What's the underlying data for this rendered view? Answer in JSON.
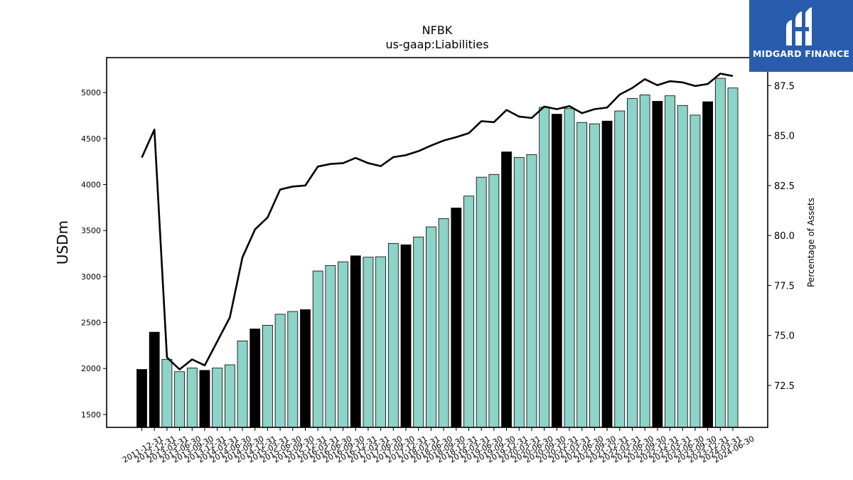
{
  "chart_data": {
    "type": "bar",
    "title": "NFBK",
    "subtitle": "us-gaap:Liabilities",
    "ylabel": "USDm",
    "y2label": "Percentage of Assets",
    "ylim": [
      1360,
      5380
    ],
    "y2lim": [
      70.4,
      88.9
    ],
    "yticks": [
      1500,
      2000,
      2500,
      3000,
      3500,
      4000,
      4500,
      5000
    ],
    "y2ticks": [
      "72.5",
      "75.0",
      "77.5",
      "80.0",
      "82.5",
      "85.0",
      "87.5"
    ],
    "bar_colors": {
      "q4": "#000000",
      "other": "#8dd3c7"
    },
    "line_color": "#000000",
    "categories": [
      "2011-12-31",
      "2012-12-31",
      "2013-03-31",
      "2013-06-30",
      "2013-09-30",
      "2013-12-31",
      "2014-03-31",
      "2014-06-30",
      "2014-09-30",
      "2014-12-31",
      "2015-03-31",
      "2015-06-30",
      "2015-09-30",
      "2015-12-31",
      "2016-03-31",
      "2016-06-30",
      "2016-09-30",
      "2016-12-31",
      "2017-03-31",
      "2017-06-30",
      "2017-09-30",
      "2017-12-31",
      "2018-03-31",
      "2018-06-30",
      "2018-09-30",
      "2018-12-31",
      "2019-03-31",
      "2019-06-30",
      "2019-09-30",
      "2019-12-31",
      "2020-03-31",
      "2020-06-30",
      "2020-09-30",
      "2020-12-31",
      "2021-03-31",
      "2021-06-30",
      "2021-09-30",
      "2021-12-31",
      "2022-03-31",
      "2022-06-30",
      "2022-09-30",
      "2022-12-31",
      "2023-03-31",
      "2023-06-30",
      "2023-09-30",
      "2023-12-31",
      "2024-03-31",
      "2024-06-30"
    ],
    "series": [
      {
        "name": "Liabilities",
        "kind": "bar",
        "values": [
          1990,
          2395,
          2100,
          1965,
          2005,
          1980,
          2005,
          2040,
          2300,
          2430,
          2470,
          2590,
          2620,
          2640,
          3060,
          3120,
          3160,
          3225,
          3210,
          3215,
          3360,
          3345,
          3430,
          3540,
          3630,
          3745,
          3875,
          4080,
          4110,
          4355,
          4295,
          4325,
          4840,
          4765,
          4825,
          4675,
          4660,
          4690,
          4800,
          4935,
          4975,
          4905,
          4965,
          4860,
          4755,
          4900,
          5155,
          5050
        ],
        "quarter_end_q4": [
          true,
          true,
          false,
          false,
          false,
          true,
          false,
          false,
          false,
          true,
          false,
          false,
          false,
          true,
          false,
          false,
          false,
          true,
          false,
          false,
          false,
          true,
          false,
          false,
          false,
          true,
          false,
          false,
          false,
          true,
          false,
          false,
          false,
          true,
          false,
          false,
          false,
          true,
          false,
          false,
          false,
          true,
          false,
          false,
          false,
          true,
          false,
          false
        ]
      },
      {
        "name": "Percentage of Assets",
        "kind": "line",
        "axis": "right",
        "values": [
          83.9,
          85.3,
          73.9,
          73.3,
          73.8,
          73.5,
          74.7,
          75.9,
          78.9,
          80.3,
          80.9,
          82.3,
          82.45,
          82.5,
          83.45,
          83.58,
          83.62,
          83.88,
          83.62,
          83.47,
          83.92,
          84.02,
          84.22,
          84.5,
          84.75,
          84.92,
          85.12,
          85.72,
          85.67,
          86.28,
          85.95,
          85.88,
          86.45,
          86.32,
          86.47,
          86.12,
          86.32,
          86.4,
          87.05,
          87.38,
          87.82,
          87.52,
          87.72,
          87.66,
          87.48,
          87.58,
          88.1,
          87.98
        ]
      }
    ],
    "grid": false,
    "legend": "none"
  },
  "logo": {
    "text": "MIDGARD FINANCE",
    "color": "#2a5cad"
  }
}
